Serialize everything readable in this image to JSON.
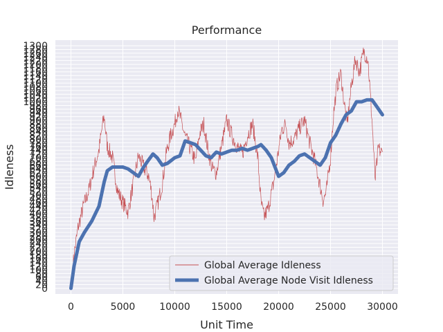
{
  "chart_data": {
    "type": "line",
    "title": "Performance",
    "xlabel": "Unit Time",
    "ylabel": "Idleness",
    "xlim": [
      -1500,
      31500
    ],
    "ylim": [
      -30,
      1330
    ],
    "x_ticks": [
      0,
      5000,
      10000,
      15000,
      20000,
      25000,
      30000
    ],
    "x_tick_labels": [
      "0",
      "5000",
      "10000",
      "15000",
      "20000",
      "25000",
      "30000"
    ],
    "y_tick_values": [
      0,
      20,
      40,
      60,
      80,
      100,
      120,
      140,
      160,
      180,
      200,
      220,
      240,
      260,
      280,
      300,
      320,
      340,
      360,
      380,
      400,
      420,
      440,
      460,
      480,
      500,
      520,
      540,
      560,
      580,
      600,
      620,
      640,
      660,
      680,
      700,
      720,
      740,
      760,
      780,
      800,
      820,
      840,
      860,
      880,
      900,
      920,
      940,
      960,
      980,
      1000,
      1020,
      1040,
      1060,
      1080,
      1100,
      1120,
      1140,
      1160,
      1180,
      1200,
      1220,
      1240,
      1260,
      1280,
      1300
    ],
    "y_tick_note": "many overlapping tick labels drawn on the y axis",
    "grid": true,
    "legend_position": "lower right",
    "series": [
      {
        "name": "Global Average Idleness",
        "color": "#c44e52",
        "style": "thin",
        "x": [
          0,
          300,
          700,
          1200,
          1700,
          2200,
          2700,
          3000,
          3200,
          3500,
          4000,
          4500,
          5000,
          5500,
          6000,
          6500,
          7000,
          7500,
          7800,
          8000,
          8300,
          8800,
          9200,
          9600,
          10000,
          10300,
          10600,
          11000,
          11500,
          12000,
          12400,
          12800,
          13200,
          13600,
          14000,
          14500,
          15000,
          15500,
          16000,
          16500,
          17000,
          17500,
          18000,
          18300,
          18600,
          19000,
          19500,
          20000,
          20300,
          20700,
          21000,
          21500,
          22000,
          22500,
          23000,
          23500,
          24000,
          24300,
          24600,
          25000,
          25300,
          25600,
          26000,
          26300,
          26600,
          27000,
          27400,
          27800,
          28200,
          28600,
          29000,
          29300,
          29600,
          30000
        ],
        "y": [
          0,
          180,
          330,
          440,
          520,
          640,
          740,
          860,
          920,
          760,
          700,
          520,
          460,
          410,
          560,
          710,
          650,
          600,
          500,
          380,
          440,
          560,
          730,
          820,
          880,
          960,
          900,
          810,
          750,
          680,
          830,
          880,
          740,
          640,
          620,
          760,
          900,
          820,
          760,
          720,
          820,
          880,
          700,
          460,
          380,
          430,
          560,
          740,
          850,
          880,
          780,
          800,
          860,
          900,
          780,
          680,
          550,
          470,
          520,
          700,
          940,
          1080,
          1150,
          1000,
          880,
          1080,
          1230,
          1160,
          1270,
          1230,
          900,
          580,
          750,
          720
        ]
      },
      {
        "name": "Global Average Node Visit Idleness",
        "color": "#4c72b0",
        "style": "thick",
        "x": [
          0,
          300,
          800,
          1300,
          2000,
          2700,
          3200,
          3500,
          4000,
          4500,
          5000,
          5500,
          6000,
          6500,
          7000,
          7500,
          7900,
          8300,
          8800,
          9300,
          10000,
          10500,
          11000,
          11500,
          12000,
          12500,
          13000,
          13500,
          14000,
          14500,
          15000,
          15500,
          16000,
          16500,
          17000,
          17500,
          18000,
          18300,
          18800,
          19300,
          20000,
          20500,
          21000,
          21500,
          22000,
          22500,
          23000,
          23500,
          24000,
          24500,
          25000,
          25500,
          26000,
          26500,
          27000,
          27500,
          28000,
          28500,
          29000,
          29500,
          30000
        ],
        "y": [
          0,
          120,
          250,
          300,
          360,
          440,
          570,
          630,
          650,
          650,
          650,
          640,
          620,
          600,
          650,
          690,
          720,
          700,
          660,
          670,
          700,
          710,
          790,
          780,
          770,
          740,
          710,
          700,
          730,
          720,
          730,
          740,
          740,
          750,
          740,
          750,
          760,
          770,
          740,
          700,
          600,
          620,
          660,
          680,
          710,
          720,
          700,
          680,
          660,
          700,
          780,
          820,
          880,
          930,
          950,
          1000,
          1000,
          1010,
          1010,
          970,
          930
        ]
      }
    ]
  }
}
